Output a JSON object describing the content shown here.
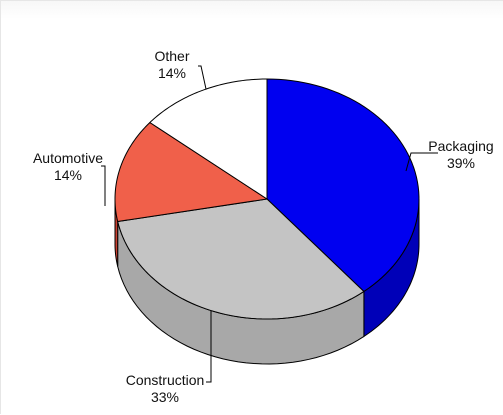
{
  "chart_data": {
    "type": "pie",
    "title": "",
    "style": "3d-exploded-none",
    "start_angle_deg": 0,
    "direction": "clockwise-from-top",
    "slices": [
      {
        "label": "Packaging",
        "value": 39,
        "value_label": "39%",
        "color": "#0000f0",
        "side_color": "#0000b8"
      },
      {
        "label": "Construction",
        "value": 33,
        "value_label": "33%",
        "color": "#c4c4c4",
        "side_color": "#a8a8a8"
      },
      {
        "label": "Automotive",
        "value": 14,
        "value_label": "14%",
        "color": "#f0604a",
        "side_color": "#c84030"
      },
      {
        "label": "Other",
        "value": 14,
        "value_label": "14%",
        "color": "#ffffff",
        "side_color": "#d8d8d8"
      }
    ],
    "outline_color": "#000000",
    "legend": "none"
  }
}
